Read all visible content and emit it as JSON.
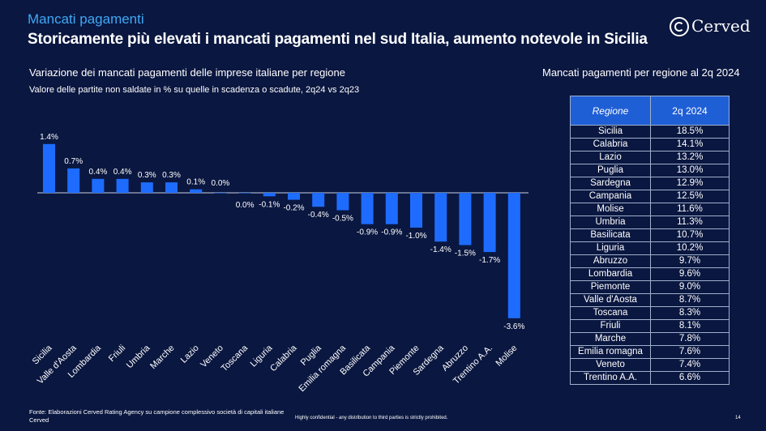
{
  "header": {
    "section_title": "Mancati pagamenti",
    "headline": "Storicamente più elevati i mancati pagamenti nel sud Italia, aumento notevole in Sicilia",
    "logo_text": "Cerved"
  },
  "chart_data": {
    "type": "bar",
    "title": "Variazione dei mancati pagamenti delle imprese italiane per regione",
    "subtitle": "Valore delle partite non saldate in % su quelle in scadenza o scadute, 2q24 vs 2q23",
    "categories": [
      "Sicilia",
      "Valle d'Aosta",
      "Lombardia",
      "Friuli",
      "Umbria",
      "Marche",
      "Lazio",
      "Veneto",
      "Toscana",
      "Liguria",
      "Calabria",
      "Puglia",
      "Emilia romagna",
      "Basilicata",
      "Campania",
      "Piemonte",
      "Sardegna",
      "Abruzzo",
      "Trentino A.A.",
      "Molise"
    ],
    "values": [
      1.4,
      0.7,
      0.4,
      0.4,
      0.3,
      0.3,
      0.1,
      0.0,
      0.0,
      -0.1,
      -0.2,
      -0.4,
      -0.5,
      -0.9,
      -0.9,
      -1.0,
      -1.4,
      -1.5,
      -1.7,
      -3.6
    ],
    "value_labels": [
      "1.4%",
      "0.7%",
      "0.4%",
      "0.4%",
      "0.3%",
      "0.3%",
      "0.1%",
      "0.0%",
      "0.0%",
      "-0.1%",
      "-0.2%",
      "-0.4%",
      "-0.5%",
      "-0.9%",
      "-0.9%",
      "-1.0%",
      "-1.4%",
      "-1.5%",
      "-1.7%",
      "-3.6%"
    ],
    "bar_color": "#1e6cff",
    "grid": false,
    "legend": "none"
  },
  "table": {
    "title": "Mancati pagamenti per regione al 2q 2024",
    "headers": [
      "Regione",
      "2q 2024"
    ],
    "rows": [
      [
        "Sicilia",
        "18.5%"
      ],
      [
        "Calabria",
        "14.1%"
      ],
      [
        "Lazio",
        "13.2%"
      ],
      [
        "Puglia",
        "13.0%"
      ],
      [
        "Sardegna",
        "12.9%"
      ],
      [
        "Campania",
        "12.5%"
      ],
      [
        "Molise",
        "11.6%"
      ],
      [
        "Umbria",
        "11.3%"
      ],
      [
        "Basilicata",
        "10.7%"
      ],
      [
        "Liguria",
        "10.2%"
      ],
      [
        "Abruzzo",
        "9.7%"
      ],
      [
        "Lombardia",
        "9.6%"
      ],
      [
        "Piemonte",
        "9.0%"
      ],
      [
        "Valle d'Aosta",
        "8.7%"
      ],
      [
        "Toscana",
        "8.3%"
      ],
      [
        "Friuli",
        "8.1%"
      ],
      [
        "Marche",
        "7.8%"
      ],
      [
        "Emilia romagna",
        "7.6%"
      ],
      [
        "Veneto",
        "7.4%"
      ],
      [
        "Trentino A.A.",
        "6.6%"
      ]
    ]
  },
  "footer": {
    "source": "Fonte: Elaborazioni Cerved Rating Agency su campione complessivo società di capitali italiane Cerved",
    "confidential": "Highly confidential - any distribution to third parties is strictly prohibited.",
    "page_number": "14"
  },
  "colors": {
    "background": "#0a1740",
    "accent": "#3fa9f5",
    "header_fill": "#1f5fd6",
    "row_fill_odd": "#f2f6fc",
    "row_fill_even": "#ffffff"
  }
}
